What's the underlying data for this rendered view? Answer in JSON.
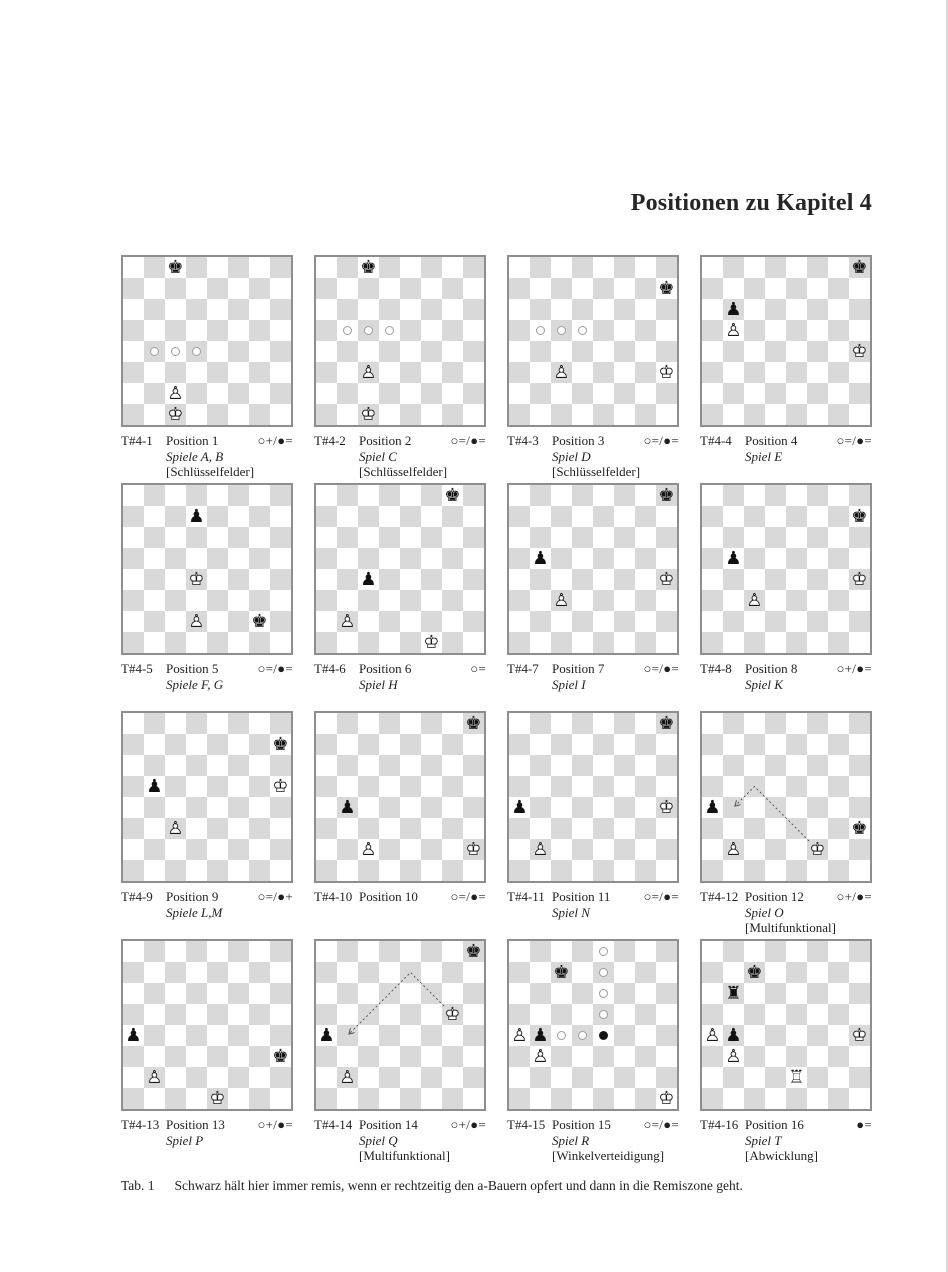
{
  "page": {
    "title": "Positionen zu Kapitel 4",
    "table_caption_label": "Tab. 1",
    "table_caption_text": "Schwarz hält hier immer remis, wenn er rechtzeitig den a-Bauern opfert und dann in die Remiszone geht."
  },
  "colors": {
    "light_square": "#ffffff",
    "dark_square": "#d9d9d9",
    "board_border": "#8e8e8e",
    "text": "#1f1f1f",
    "arrow": "#4a4a4a"
  },
  "glyphs": {
    "wk_outline": "♔",
    "wp_outline": "♙",
    "wr_outline": "♖",
    "bk_solid": "♚",
    "bp_solid": "♟",
    "br_solid": "♜",
    "wk_solid": "♚",
    "wp_solid": "♟",
    "wr_solid": "♜"
  },
  "piece_names": {
    "wk": "white-king",
    "wp": "white-pawn",
    "wr": "white-rook",
    "bk": "black-king",
    "bp": "black-pawn",
    "br": "black-rook"
  },
  "diagrams": [
    {
      "id": "T#4-1",
      "position_label": "Position 1",
      "result": "○+/●=",
      "game_label": "Spiele A, B",
      "tag": "[Schlüsselfelder]",
      "pieces": [
        [
          "c8",
          "bk"
        ],
        [
          "c2",
          "wp"
        ],
        [
          "c1",
          "wk"
        ]
      ],
      "markers": [
        [
          "b4",
          "white"
        ],
        [
          "c4",
          "white"
        ],
        [
          "d4",
          "white"
        ]
      ]
    },
    {
      "id": "T#4-2",
      "position_label": "Position 2",
      "result": "○=/●=",
      "game_label": "Spiel C",
      "tag": "[Schlüsselfelder]",
      "pieces": [
        [
          "c8",
          "bk"
        ],
        [
          "c3",
          "wp"
        ],
        [
          "c1",
          "wk"
        ]
      ],
      "markers": [
        [
          "b5",
          "white"
        ],
        [
          "c5",
          "white"
        ],
        [
          "d5",
          "white"
        ]
      ]
    },
    {
      "id": "T#4-3",
      "position_label": "Position 3",
      "result": "○=/●=",
      "game_label": "Spiel D",
      "tag": "[Schlüsselfelder]",
      "pieces": [
        [
          "h7",
          "bk"
        ],
        [
          "c3",
          "wp"
        ],
        [
          "h3",
          "wk"
        ]
      ],
      "markers": [
        [
          "b5",
          "white"
        ],
        [
          "c5",
          "white"
        ],
        [
          "d5",
          "white"
        ]
      ]
    },
    {
      "id": "T#4-4",
      "position_label": "Position 4",
      "result": "○=/●=",
      "game_label": "Spiel E",
      "tag": "",
      "pieces": [
        [
          "h8",
          "bk"
        ],
        [
          "b6",
          "bp"
        ],
        [
          "b5",
          "wp"
        ],
        [
          "h4",
          "wk"
        ]
      ],
      "markers": []
    },
    {
      "id": "T#4-5",
      "position_label": "Position 5",
      "result": "○=/●=",
      "game_label": "Spiele F, G",
      "tag": "",
      "pieces": [
        [
          "d7",
          "bp"
        ],
        [
          "d4",
          "wk"
        ],
        [
          "d2",
          "wp"
        ],
        [
          "g2",
          "bk"
        ]
      ],
      "markers": []
    },
    {
      "id": "T#4-6",
      "position_label": "Position 6",
      "result": "○=",
      "game_label": "Spiel H",
      "tag": "",
      "pieces": [
        [
          "g8",
          "bk"
        ],
        [
          "c4",
          "bp"
        ],
        [
          "b2",
          "wp"
        ],
        [
          "f1",
          "wk"
        ]
      ],
      "markers": []
    },
    {
      "id": "T#4-7",
      "position_label": "Position 7",
      "result": "○=/●=",
      "game_label": "Spiel I",
      "tag": "",
      "pieces": [
        [
          "h8",
          "bk"
        ],
        [
          "b5",
          "bp"
        ],
        [
          "c3",
          "wp"
        ],
        [
          "h4",
          "wk"
        ]
      ],
      "markers": []
    },
    {
      "id": "T#4-8",
      "position_label": "Position 8",
      "result": "○+/●=",
      "game_label": "Spiel K",
      "tag": "",
      "pieces": [
        [
          "h7",
          "bk"
        ],
        [
          "b5",
          "bp"
        ],
        [
          "c3",
          "wp"
        ],
        [
          "h4",
          "wk"
        ]
      ],
      "markers": []
    },
    {
      "id": "T#4-9",
      "position_label": "Position 9",
      "result": "○=/●+",
      "game_label": "Spiele L,M",
      "tag": "",
      "pieces": [
        [
          "h7",
          "bk"
        ],
        [
          "h5",
          "wk"
        ],
        [
          "b5",
          "bp"
        ],
        [
          "c3",
          "wp"
        ]
      ],
      "markers": []
    },
    {
      "id": "T#4-10",
      "position_label": "Position 10",
      "result": "○=/●=",
      "game_label": "",
      "tag": "",
      "pieces": [
        [
          "h8",
          "bk"
        ],
        [
          "b4",
          "bp"
        ],
        [
          "c2",
          "wp"
        ],
        [
          "h2",
          "wk"
        ]
      ],
      "markers": []
    },
    {
      "id": "T#4-11",
      "position_label": "Position 11",
      "result": "○=/●=",
      "game_label": "Spiel N",
      "tag": "",
      "pieces": [
        [
          "h8",
          "bk"
        ],
        [
          "a4",
          "bp"
        ],
        [
          "b2",
          "wp"
        ],
        [
          "h4",
          "wk"
        ]
      ],
      "markers": []
    },
    {
      "id": "T#4-12",
      "position_label": "Position 12",
      "result": "○+/●=",
      "game_label": "Spiel O",
      "tag": "[Multifunktional]",
      "pieces": [
        [
          "h3",
          "bk"
        ],
        [
          "a4",
          "bp"
        ],
        [
          "b2",
          "wp"
        ],
        [
          "f2",
          "wk"
        ]
      ],
      "markers": [],
      "arrow": [
        "f2",
        "c5",
        "b4"
      ]
    },
    {
      "id": "T#4-13",
      "position_label": "Position 13",
      "result": "○+/●=",
      "game_label": "Spiel P",
      "tag": "",
      "pieces": [
        [
          "h3",
          "bk"
        ],
        [
          "a4",
          "bp"
        ],
        [
          "b2",
          "wp"
        ],
        [
          "e1",
          "wk"
        ]
      ],
      "markers": []
    },
    {
      "id": "T#4-14",
      "position_label": "Position 14",
      "result": "○+/●=",
      "game_label": "Spiel Q",
      "tag": "[Multifunktional]",
      "pieces": [
        [
          "h8",
          "bk"
        ],
        [
          "a4",
          "bp"
        ],
        [
          "b2",
          "wp"
        ],
        [
          "g5",
          "wk"
        ]
      ],
      "markers": [],
      "arrow": [
        "g5",
        "e7",
        "b4"
      ]
    },
    {
      "id": "T#4-15",
      "position_label": "Position 15",
      "result": "○=/●=",
      "game_label": "Spiel R",
      "tag": "[Winkelverteidigung]",
      "pieces": [
        [
          "c7",
          "bk"
        ],
        [
          "a4",
          "wp"
        ],
        [
          "b4",
          "bp"
        ],
        [
          "b3",
          "wp"
        ],
        [
          "h1",
          "wk"
        ]
      ],
      "markers": [
        [
          "e8",
          "white"
        ],
        [
          "e7",
          "white"
        ],
        [
          "e6",
          "white"
        ],
        [
          "e5",
          "white"
        ],
        [
          "d4",
          "white"
        ],
        [
          "c4",
          "white"
        ],
        [
          "e4",
          "black"
        ]
      ]
    },
    {
      "id": "T#4-16",
      "position_label": "Position 16",
      "result": "●=",
      "game_label": "Spiel T",
      "tag": "[Abwicklung]",
      "pieces": [
        [
          "c7",
          "bk"
        ],
        [
          "b6",
          "br"
        ],
        [
          "a4",
          "wp"
        ],
        [
          "b4",
          "bp"
        ],
        [
          "b3",
          "wp"
        ],
        [
          "e2",
          "wr"
        ],
        [
          "h4",
          "wk"
        ]
      ],
      "markers": []
    }
  ]
}
